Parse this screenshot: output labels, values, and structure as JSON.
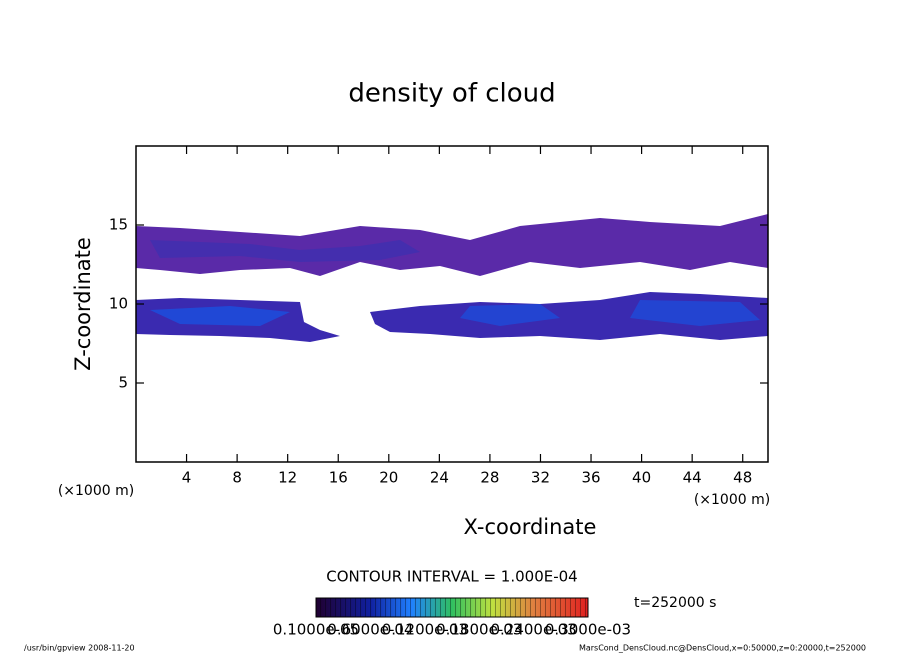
{
  "chart_data": {
    "type": "contour",
    "title": "density of cloud",
    "x_label": "X-coordinate",
    "y_label": "Z-coordinate",
    "x_unit_label": "(×1000 m)",
    "y_unit_label": "(×1000 m)",
    "xlim": [
      0,
      50
    ],
    "ylim": [
      0,
      20
    ],
    "xticks": [
      4,
      8,
      12,
      16,
      20,
      24,
      28,
      32,
      36,
      40,
      44,
      48
    ],
    "yticks": [
      5,
      10,
      15
    ],
    "contour_interval": "CONTOUR INTERVAL = 1.000E-04",
    "time_label": "t=252000 s",
    "colorbar_labels": [
      "0.1000e-05",
      "0.6000e-04",
      "0.1200e-03",
      "0.1800e-03",
      "0.2400e-03",
      "0.3000e-03"
    ],
    "footer_left": "/usr/bin/gpview   2008-11-20",
    "footer_right": "MarsCond_DensCloud.nc@DensCloud,x=0:50000,z=0:20000,t=252000"
  }
}
